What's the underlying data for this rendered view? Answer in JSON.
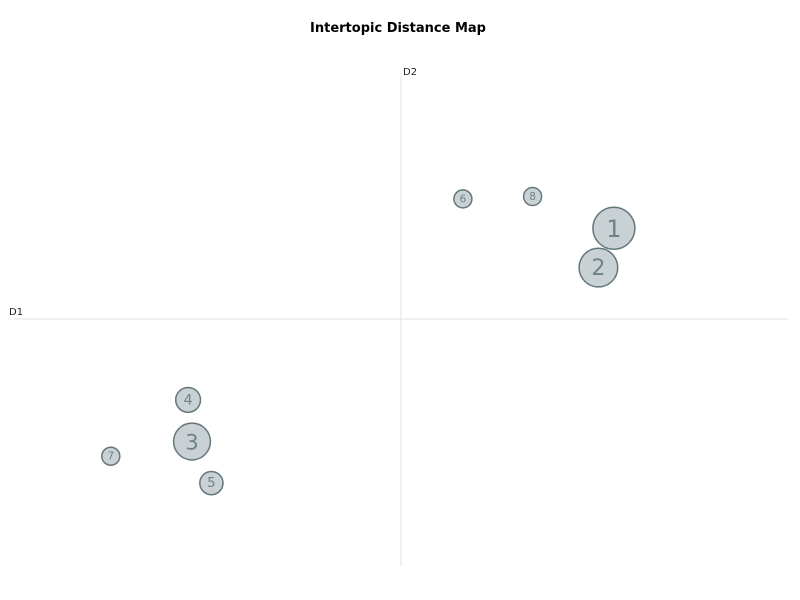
{
  "chart_data": {
    "type": "scatter",
    "title": "Intertopic Distance Map",
    "xlabel": "D1",
    "ylabel": "D2",
    "xlim": [
      -10,
      10
    ],
    "ylim": [
      -10,
      10
    ],
    "grid": false,
    "points": [
      {
        "label": "1",
        "x": 5.5,
        "y": 3.7,
        "size": 1.0
      },
      {
        "label": "2",
        "x": 5.1,
        "y": 2.1,
        "size": 0.9
      },
      {
        "label": "3",
        "x": -5.4,
        "y": -5.0,
        "size": 0.85
      },
      {
        "label": "4",
        "x": -5.5,
        "y": -3.3,
        "size": 0.5
      },
      {
        "label": "5",
        "x": -4.9,
        "y": -6.7,
        "size": 0.45
      },
      {
        "label": "6",
        "x": 1.6,
        "y": 4.9,
        "size": 0.3
      },
      {
        "label": "7",
        "x": -7.5,
        "y": -5.6,
        "size": 0.3
      },
      {
        "label": "8",
        "x": 3.4,
        "y": 5.0,
        "size": 0.3
      }
    ]
  },
  "colors": {
    "bubble_fill": "#c9d1d5",
    "bubble_stroke": "#63777b",
    "bubble_text": "#6f8387",
    "axis": "#e2e2e2"
  }
}
